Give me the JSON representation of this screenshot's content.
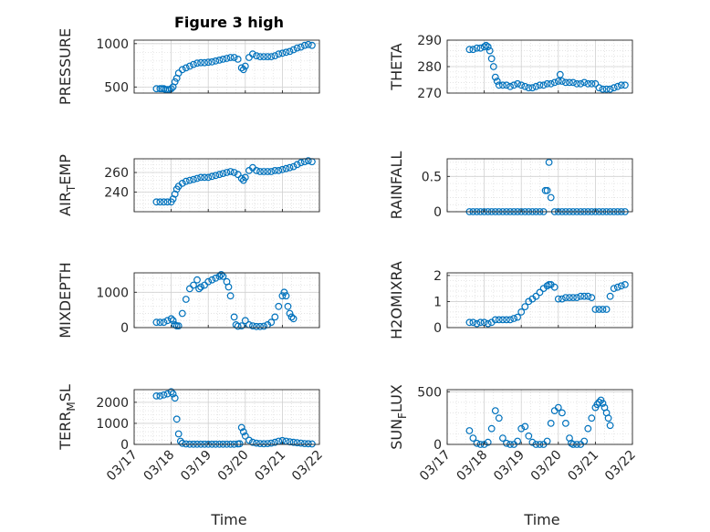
{
  "figure": {
    "title": "Figure 3 high",
    "xlabel": "Time",
    "xtick_labels": [
      "03/17",
      "03/18",
      "03/19",
      "03/20",
      "03/21",
      "03/22"
    ],
    "marker_color": "#0072bd",
    "grid": true
  },
  "chart_data": [
    {
      "type": "scatter",
      "ylabel": "PRESSURE",
      "ylim": [
        430,
        1040
      ],
      "yticks": [
        500,
        1000
      ],
      "x": [
        17.6,
        17.7,
        17.75,
        17.8,
        17.85,
        17.9,
        17.95,
        18.0,
        18.05,
        18.1,
        18.15,
        18.2,
        18.3,
        18.4,
        18.5,
        18.6,
        18.7,
        18.8,
        18.9,
        19.0,
        19.1,
        19.2,
        19.3,
        19.4,
        19.5,
        19.6,
        19.7,
        19.8,
        19.9,
        19.95,
        20.0,
        20.1,
        20.2,
        20.3,
        20.4,
        20.5,
        20.6,
        20.7,
        20.8,
        20.9,
        21.0,
        21.1,
        21.2,
        21.3,
        21.4,
        21.5,
        21.6,
        21.7,
        21.8
      ],
      "y": [
        480,
        480,
        480,
        480,
        470,
        470,
        470,
        480,
        500,
        560,
        600,
        660,
        700,
        720,
        740,
        760,
        775,
        780,
        780,
        785,
        790,
        800,
        810,
        820,
        830,
        840,
        840,
        820,
        720,
        700,
        740,
        840,
        880,
        860,
        850,
        850,
        850,
        850,
        860,
        880,
        890,
        900,
        910,
        930,
        950,
        960,
        980,
        990,
        980
      ]
    },
    {
      "type": "scatter",
      "ylabel": "THETA",
      "ylim": [
        270,
        290
      ],
      "yticks": [
        270,
        280,
        290
      ],
      "x": [
        17.6,
        17.7,
        17.8,
        17.9,
        18.0,
        18.05,
        18.1,
        18.15,
        18.2,
        18.25,
        18.3,
        18.35,
        18.4,
        18.5,
        18.6,
        18.7,
        18.8,
        18.9,
        19.0,
        19.1,
        19.2,
        19.3,
        19.4,
        19.5,
        19.6,
        19.7,
        19.8,
        19.9,
        20.0,
        20.05,
        20.1,
        20.2,
        20.3,
        20.4,
        20.5,
        20.6,
        20.7,
        20.8,
        20.9,
        21.0,
        21.1,
        21.2,
        21.3,
        21.4,
        21.5,
        21.6,
        21.7,
        21.8
      ],
      "y": [
        286.5,
        286.5,
        287,
        287,
        287.5,
        288,
        287.5,
        286,
        283,
        280,
        276,
        274.5,
        273,
        273,
        273,
        272.5,
        273,
        273.5,
        273,
        272.5,
        272,
        272,
        272.5,
        273,
        273,
        273.5,
        273.5,
        274,
        274.5,
        277,
        274.5,
        274,
        274,
        274,
        273.5,
        273.5,
        274,
        273.5,
        273.5,
        273.5,
        272,
        271.5,
        271.5,
        271.5,
        272,
        272.5,
        273,
        273
      ]
    },
    {
      "type": "scatter",
      "ylabel": "AIR_TEMP",
      "ylim": [
        220,
        274
      ],
      "yticks": [
        240,
        260
      ],
      "x": [
        17.6,
        17.7,
        17.8,
        17.9,
        18.0,
        18.05,
        18.1,
        18.15,
        18.2,
        18.3,
        18.4,
        18.5,
        18.6,
        18.7,
        18.8,
        18.9,
        19.0,
        19.1,
        19.2,
        19.3,
        19.4,
        19.5,
        19.6,
        19.7,
        19.8,
        19.9,
        19.95,
        20.0,
        20.1,
        20.2,
        20.3,
        20.4,
        20.5,
        20.6,
        20.7,
        20.8,
        20.9,
        21.0,
        21.1,
        21.2,
        21.3,
        21.4,
        21.5,
        21.6,
        21.7,
        21.8
      ],
      "y": [
        230,
        230,
        230,
        230,
        230,
        233,
        238,
        243,
        246,
        249,
        251,
        252,
        253,
        254,
        255,
        255,
        255,
        256,
        257,
        258,
        259,
        260,
        261,
        260,
        258,
        254,
        252,
        255,
        262,
        265,
        262,
        261,
        261,
        261,
        261,
        262,
        262,
        263,
        264,
        265,
        266,
        268,
        270,
        271,
        272,
        271
      ]
    },
    {
      "type": "scatter",
      "ylabel": "RAINFALL",
      "ylim": [
        0,
        0.75
      ],
      "yticks": [
        0,
        0.5
      ],
      "x": [
        17.6,
        17.7,
        17.8,
        17.9,
        18.0,
        18.1,
        18.2,
        18.3,
        18.4,
        18.5,
        18.6,
        18.7,
        18.8,
        18.9,
        19.0,
        19.1,
        19.2,
        19.3,
        19.4,
        19.5,
        19.6,
        19.65,
        19.7,
        19.75,
        19.8,
        19.9,
        20.0,
        20.1,
        20.2,
        20.3,
        20.4,
        20.5,
        20.6,
        20.7,
        20.8,
        20.9,
        21.0,
        21.1,
        21.2,
        21.3,
        21.4,
        21.5,
        21.6,
        21.7,
        21.8
      ],
      "y": [
        0,
        0,
        0,
        0,
        0,
        0,
        0,
        0,
        0,
        0,
        0,
        0,
        0,
        0,
        0,
        0,
        0,
        0,
        0,
        0,
        0,
        0.3,
        0.3,
        0.7,
        0.2,
        0,
        0,
        0,
        0,
        0,
        0,
        0,
        0,
        0,
        0,
        0,
        0,
        0,
        0,
        0,
        0,
        0,
        0,
        0,
        0
      ]
    },
    {
      "type": "scatter",
      "ylabel": "MIXDEPTH",
      "ylim": [
        0,
        1550
      ],
      "yticks": [
        0,
        1000
      ],
      "x": [
        17.6,
        17.7,
        17.8,
        17.9,
        18.0,
        18.05,
        18.1,
        18.15,
        18.2,
        18.3,
        18.4,
        18.5,
        18.6,
        18.7,
        18.75,
        18.8,
        18.9,
        19.0,
        19.1,
        19.2,
        19.3,
        19.35,
        19.4,
        19.5,
        19.55,
        19.6,
        19.7,
        19.75,
        19.8,
        19.9,
        20.0,
        20.1,
        20.2,
        20.3,
        20.4,
        20.5,
        20.6,
        20.7,
        20.8,
        20.9,
        21.0,
        21.05,
        21.1,
        21.15,
        21.2,
        21.25,
        21.3
      ],
      "y": [
        150,
        150,
        150,
        200,
        250,
        200,
        80,
        50,
        50,
        400,
        800,
        1100,
        1200,
        1350,
        1100,
        1150,
        1200,
        1300,
        1350,
        1400,
        1450,
        1500,
        1450,
        1300,
        1150,
        900,
        300,
        80,
        40,
        50,
        200,
        80,
        50,
        30,
        30,
        40,
        80,
        150,
        300,
        600,
        900,
        1000,
        900,
        600,
        400,
        300,
        250
      ]
    },
    {
      "type": "scatter",
      "ylabel": "H2OMIXRA",
      "ylim": [
        0,
        2.1
      ],
      "yticks": [
        0,
        1,
        2
      ],
      "x": [
        17.6,
        17.7,
        17.8,
        17.9,
        18.0,
        18.1,
        18.2,
        18.3,
        18.4,
        18.5,
        18.6,
        18.7,
        18.8,
        18.9,
        19.0,
        19.1,
        19.2,
        19.3,
        19.4,
        19.5,
        19.6,
        19.7,
        19.75,
        19.8,
        19.9,
        20.0,
        20.1,
        20.2,
        20.3,
        20.4,
        20.5,
        20.6,
        20.7,
        20.8,
        20.9,
        21.0,
        21.1,
        21.2,
        21.3,
        21.4,
        21.5,
        21.6,
        21.7,
        21.8
      ],
      "y": [
        0.2,
        0.2,
        0.15,
        0.2,
        0.2,
        0.15,
        0.2,
        0.3,
        0.3,
        0.3,
        0.3,
        0.3,
        0.35,
        0.4,
        0.6,
        0.8,
        1.0,
        1.1,
        1.2,
        1.35,
        1.5,
        1.6,
        1.65,
        1.65,
        1.55,
        1.1,
        1.1,
        1.15,
        1.15,
        1.15,
        1.15,
        1.2,
        1.2,
        1.2,
        1.15,
        0.7,
        0.7,
        0.7,
        0.7,
        1.2,
        1.5,
        1.55,
        1.6,
        1.65
      ]
    },
    {
      "type": "scatter",
      "ylabel": "TERR_MSL",
      "ylim": [
        0,
        2600
      ],
      "yticks": [
        0,
        1000,
        2000
      ],
      "x": [
        17.6,
        17.7,
        17.8,
        17.9,
        18.0,
        18.05,
        18.1,
        18.15,
        18.2,
        18.25,
        18.3,
        18.4,
        18.5,
        18.6,
        18.7,
        18.8,
        18.9,
        19.0,
        19.1,
        19.2,
        19.3,
        19.4,
        19.5,
        19.6,
        19.7,
        19.8,
        19.85,
        19.9,
        19.95,
        20.0,
        20.1,
        20.2,
        20.3,
        20.4,
        20.5,
        20.6,
        20.7,
        20.8,
        20.9,
        21.0,
        21.1,
        21.2,
        21.3,
        21.4,
        21.5,
        21.6,
        21.7,
        21.8
      ],
      "y": [
        2300,
        2300,
        2350,
        2400,
        2500,
        2400,
        2200,
        1200,
        500,
        150,
        50,
        20,
        10,
        10,
        10,
        10,
        10,
        10,
        10,
        10,
        10,
        10,
        10,
        10,
        10,
        20,
        30,
        800,
        600,
        400,
        200,
        100,
        60,
        40,
        30,
        40,
        60,
        100,
        150,
        180,
        150,
        120,
        100,
        80,
        60,
        40,
        30,
        20
      ]
    },
    {
      "type": "scatter",
      "ylabel": "SUN_FLUX",
      "ylim": [
        0,
        520
      ],
      "yticks": [
        0,
        500
      ],
      "x": [
        17.6,
        17.7,
        17.8,
        17.9,
        18.0,
        18.1,
        18.2,
        18.3,
        18.4,
        18.5,
        18.6,
        18.7,
        18.8,
        18.9,
        19.0,
        19.1,
        19.2,
        19.3,
        19.4,
        19.5,
        19.6,
        19.7,
        19.8,
        19.9,
        20.0,
        20.1,
        20.2,
        20.3,
        20.35,
        20.4,
        20.5,
        20.6,
        20.7,
        20.8,
        20.9,
        21.0,
        21.05,
        21.1,
        21.15,
        21.2,
        21.25,
        21.3,
        21.35,
        21.4
      ],
      "y": [
        130,
        60,
        10,
        0,
        0,
        20,
        150,
        320,
        250,
        60,
        10,
        0,
        0,
        30,
        150,
        170,
        80,
        20,
        0,
        0,
        0,
        30,
        200,
        320,
        350,
        300,
        200,
        60,
        10,
        0,
        0,
        0,
        30,
        150,
        250,
        350,
        380,
        400,
        420,
        390,
        350,
        300,
        250,
        180
      ]
    }
  ]
}
